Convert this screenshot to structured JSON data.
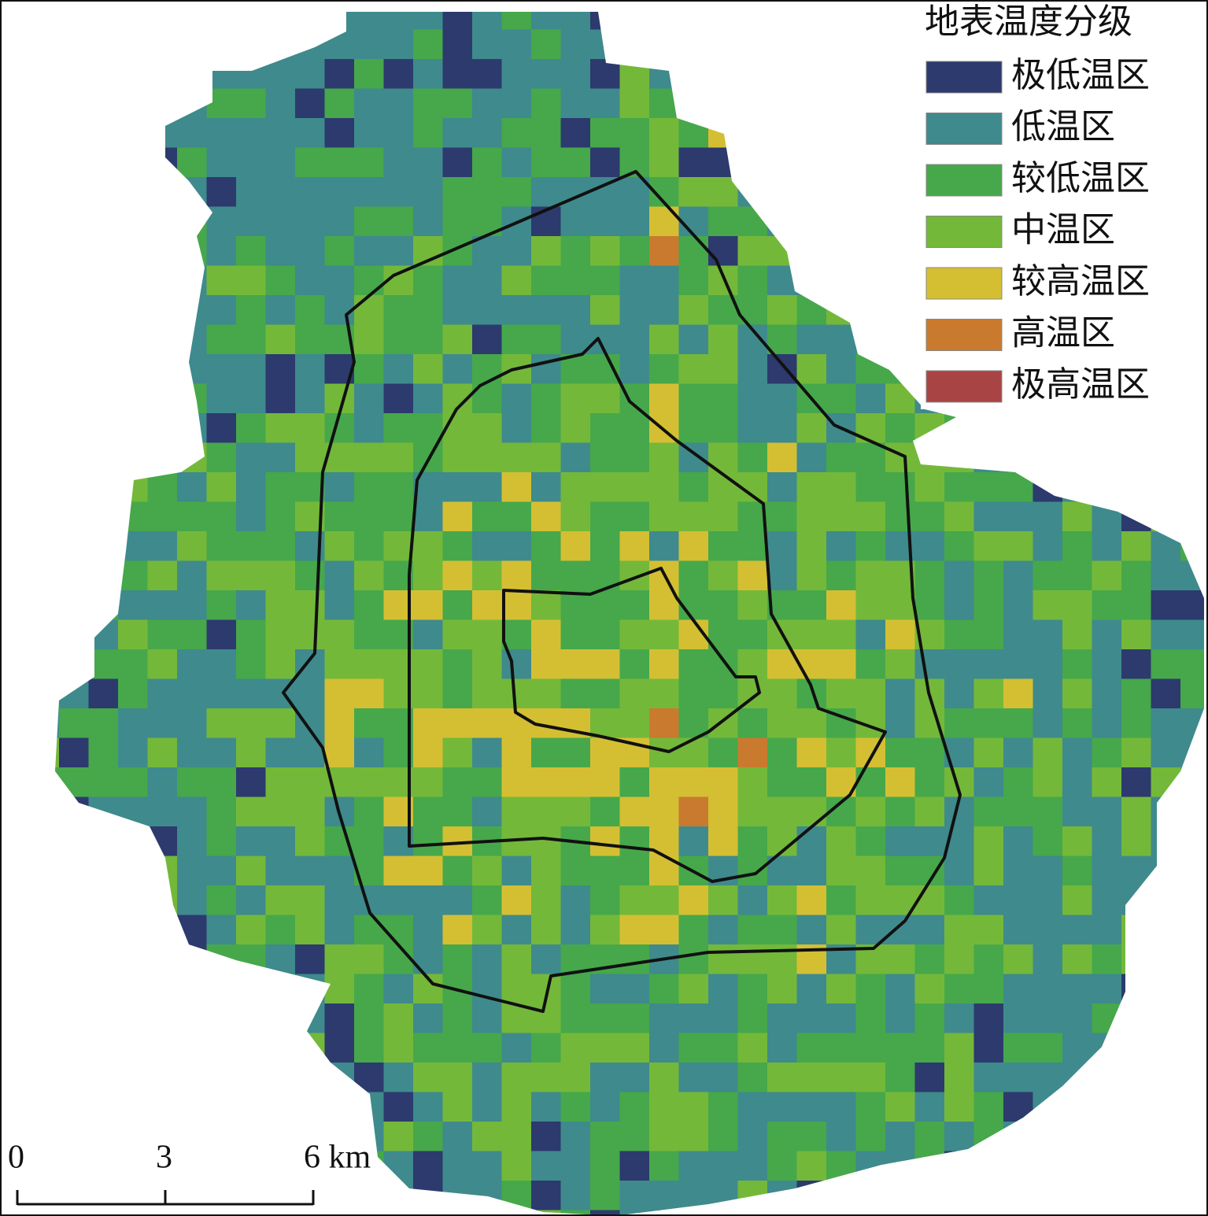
{
  "legend": {
    "title": "地表温度分级",
    "items": [
      {
        "label": "极低温区",
        "color": "#2c3a6e"
      },
      {
        "label": "低温区",
        "color": "#3f8a8c"
      },
      {
        "label": "较低温区",
        "color": "#46a84a"
      },
      {
        "label": "中温区",
        "color": "#74b83a"
      },
      {
        "label": "较高温区",
        "color": "#d4bf33"
      },
      {
        "label": "高温区",
        "color": "#c97a2e"
      },
      {
        "label": "极高温区",
        "color": "#a84544"
      }
    ]
  },
  "scale_bar": {
    "labels": [
      "0",
      "3",
      "6 km"
    ]
  }
}
